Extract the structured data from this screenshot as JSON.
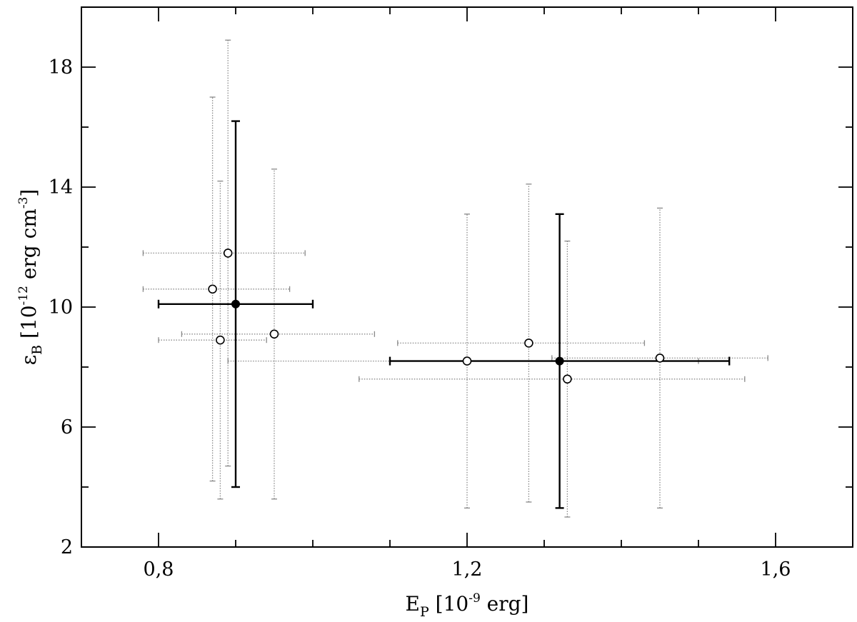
{
  "chart_data": {
    "type": "scatter",
    "xlabel": {
      "main": "E",
      "sub": "P",
      "prefix": " [10",
      "sup": "-9",
      "suffix": " erg]"
    },
    "ylabel": {
      "main": "ε",
      "sub": "B",
      "prefix": " [10",
      "sup": "-12",
      "mid": " erg cm",
      "sup2": "-3",
      "suffix": "]"
    },
    "xlim": [
      0.7,
      1.7
    ],
    "ylim": [
      2,
      20
    ],
    "x_major_ticks": [
      0.8,
      1.2,
      1.6
    ],
    "x_minor_ticks": [
      0.9,
      1.0,
      1.1,
      1.3,
      1.4,
      1.5
    ],
    "x_tick_labels": [
      "0,8",
      "1,2",
      "1,6"
    ],
    "y_major_ticks": [
      2,
      6,
      10,
      14,
      18
    ],
    "y_minor_ticks": [
      4,
      8,
      12,
      16
    ],
    "y_tick_labels": [
      "2",
      "6",
      "10",
      "14",
      "18"
    ],
    "grid": false,
    "series": [
      {
        "marker": "open-circle",
        "error_style": "dotted",
        "points": [
          {
            "x": 0.87,
            "y": 10.6,
            "xerr": [
              0.78,
              0.97
            ],
            "yerr": [
              4.2,
              17.0
            ]
          },
          {
            "x": 0.89,
            "y": 11.8,
            "xerr": [
              0.78,
              0.99
            ],
            "yerr": [
              4.7,
              18.9
            ]
          },
          {
            "x": 0.88,
            "y": 8.9,
            "xerr": [
              0.8,
              0.94
            ],
            "yerr": [
              3.6,
              14.2
            ]
          },
          {
            "x": 0.95,
            "y": 9.1,
            "xerr": [
              0.83,
              1.08
            ],
            "yerr": [
              3.6,
              14.6
            ]
          },
          {
            "x": 1.2,
            "y": 8.2,
            "xerr": [
              0.89,
              1.5
            ],
            "yerr": [
              3.3,
              13.1
            ]
          },
          {
            "x": 1.28,
            "y": 8.8,
            "xerr": [
              1.11,
              1.43
            ],
            "yerr": [
              3.5,
              14.1
            ]
          },
          {
            "x": 1.33,
            "y": 7.6,
            "xerr": [
              1.06,
              1.56
            ],
            "yerr": [
              3.0,
              12.2
            ]
          },
          {
            "x": 1.45,
            "y": 8.3,
            "xerr": [
              1.31,
              1.59
            ],
            "yerr": [
              3.3,
              13.3
            ]
          }
        ]
      },
      {
        "marker": "filled-circle",
        "error_style": "solid",
        "points": [
          {
            "x": 0.9,
            "y": 10.1,
            "xerr": [
              0.8,
              1.0
            ],
            "yerr": [
              4.0,
              16.2
            ]
          },
          {
            "x": 1.32,
            "y": 8.2,
            "xerr": [
              1.1,
              1.54
            ],
            "yerr": [
              3.3,
              13.1
            ]
          }
        ]
      }
    ]
  }
}
